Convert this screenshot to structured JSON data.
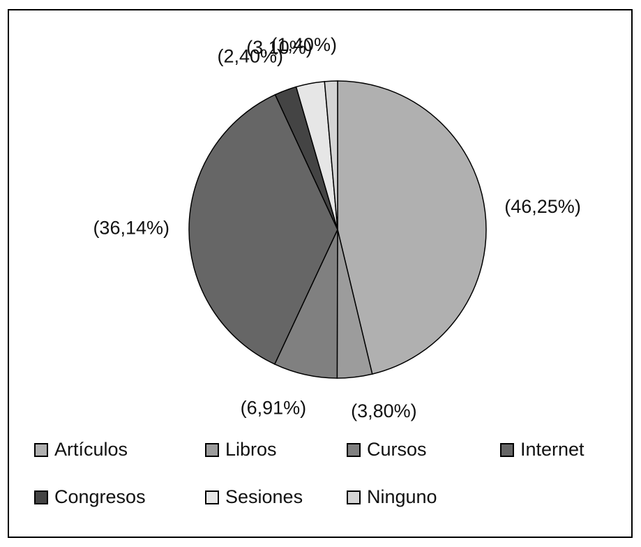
{
  "chart_data": {
    "type": "pie",
    "categories": [
      "Artículos",
      "Libros",
      "Cursos",
      "Internet",
      "Congresos",
      "Sesiones",
      "Ninguno"
    ],
    "values": [
      46.25,
      3.8,
      6.91,
      36.14,
      2.4,
      3.1,
      1.4
    ],
    "value_labels": [
      "(46,25%)",
      "(3,80%)",
      "(6,91%)",
      "(36,14%)",
      "(2,40%)",
      "(3,10%)",
      "(1,40%)"
    ],
    "colors": [
      "#b0b0b0",
      "#9c9c9c",
      "#808080",
      "#666666",
      "#444444",
      "#e6e6e6",
      "#d4d4d4"
    ],
    "legend": "bottom"
  }
}
